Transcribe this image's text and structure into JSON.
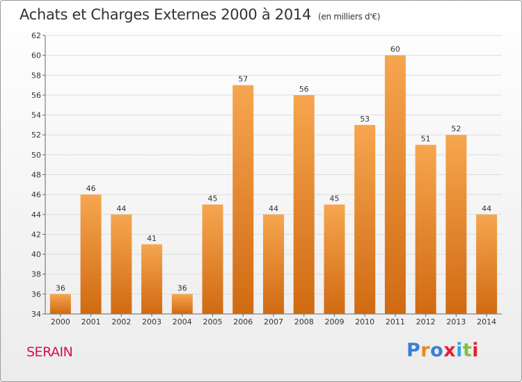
{
  "header": {
    "title": "Achats et Charges Externes 2000 à 2014",
    "subtitle": "(en milliers d'€)"
  },
  "footer": {
    "town": "SERAIN",
    "logo": "Proxiti",
    "logo_colors": [
      "#3a7fd5",
      "#e8891d",
      "#3a7fd5",
      "#e8202e",
      "#2aa7e0",
      "#7cc242",
      "#e8202e"
    ]
  },
  "colors": {
    "bar_top": "#f6a64f",
    "bar_bottom": "#d06a12",
    "grid": "#dddddd"
  },
  "chart_data": {
    "type": "bar",
    "categories": [
      "2000",
      "2001",
      "2002",
      "2003",
      "2004",
      "2005",
      "2006",
      "2007",
      "2008",
      "2009",
      "2010",
      "2011",
      "2012",
      "2013",
      "2014"
    ],
    "values": [
      36,
      46,
      44,
      41,
      36,
      45,
      57,
      44,
      56,
      45,
      53,
      60,
      51,
      52,
      44
    ],
    "ylim": [
      34,
      62
    ],
    "yticks": [
      34,
      36,
      38,
      40,
      42,
      44,
      46,
      48,
      50,
      52,
      54,
      56,
      58,
      60,
      62
    ],
    "grid": true,
    "legend": "none"
  }
}
